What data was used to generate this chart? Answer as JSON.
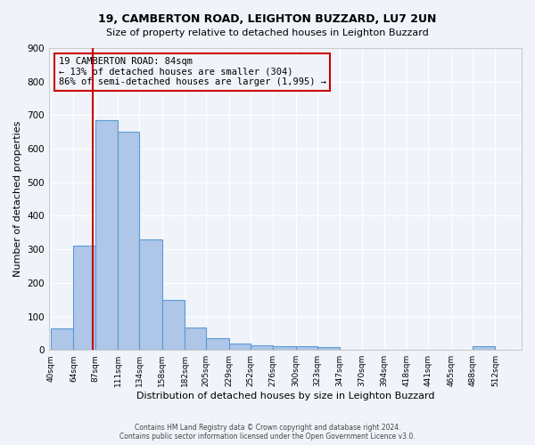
{
  "title1": "19, CAMBERTON ROAD, LEIGHTON BUZZARD, LU7 2UN",
  "title2": "Size of property relative to detached houses in Leighton Buzzard",
  "xlabel": "Distribution of detached houses by size in Leighton Buzzard",
  "ylabel": "Number of detached properties",
  "footer1": "Contains HM Land Registry data © Crown copyright and database right 2024.",
  "footer2": "Contains public sector information licensed under the Open Government Licence v3.0.",
  "bar_labels": [
    "40sqm",
    "64sqm",
    "87sqm",
    "111sqm",
    "134sqm",
    "158sqm",
    "182sqm",
    "205sqm",
    "229sqm",
    "252sqm",
    "276sqm",
    "300sqm",
    "323sqm",
    "347sqm",
    "370sqm",
    "394sqm",
    "418sqm",
    "441sqm",
    "465sqm",
    "488sqm",
    "512sqm"
  ],
  "bar_values": [
    65,
    310,
    685,
    650,
    330,
    150,
    68,
    35,
    20,
    13,
    10,
    10,
    8,
    0,
    0,
    0,
    0,
    0,
    0,
    10,
    0
  ],
  "bar_color": "#aec6e8",
  "bar_edge_color": "#5b9bd5",
  "vline_x": 84,
  "vline_color": "#cc0000",
  "ylim": [
    0,
    900
  ],
  "yticks": [
    0,
    100,
    200,
    300,
    400,
    500,
    600,
    700,
    800,
    900
  ],
  "annotation_title": "19 CAMBERTON ROAD: 84sqm",
  "annotation_line1": "← 13% of detached houses are smaller (304)",
  "annotation_line2": "86% of semi-detached houses are larger (1,995) →",
  "annotation_box_color": "#cc0000",
  "bg_color": "#f0f4fa",
  "grid_color": "#ffffff",
  "bin_width": 23.5
}
